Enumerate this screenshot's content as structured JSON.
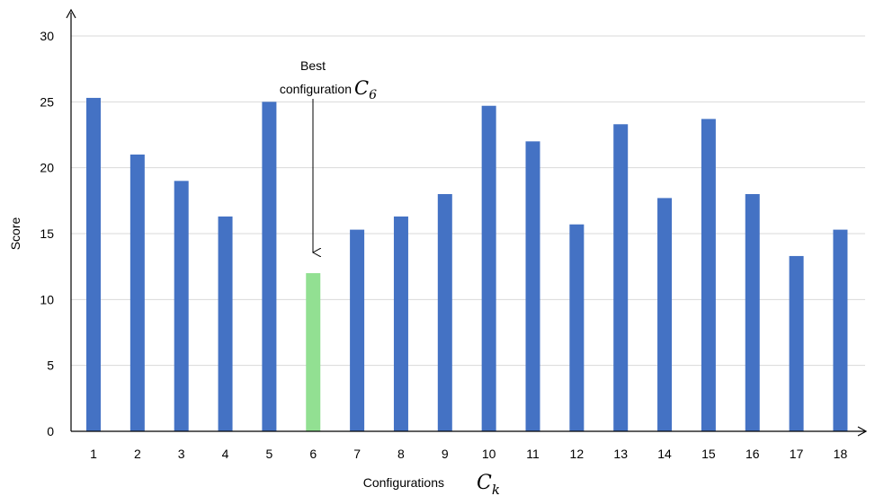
{
  "chart_data": {
    "type": "bar",
    "categories": [
      "1",
      "2",
      "3",
      "4",
      "5",
      "6",
      "7",
      "8",
      "9",
      "10",
      "11",
      "12",
      "13",
      "14",
      "15",
      "16",
      "17",
      "18"
    ],
    "values": [
      25.3,
      21,
      19,
      16.3,
      25,
      12,
      15.3,
      16.3,
      18,
      24.7,
      22,
      15.7,
      23.3,
      17.7,
      23.7,
      18,
      13.3,
      15.3
    ],
    "highlight_index": 5,
    "colors": {
      "bar": "#4472C4",
      "highlight": "#92E092",
      "grid": "#D9D9D9",
      "axis": "#000000"
    },
    "ylabel": "Score",
    "xlabel": {
      "text": "Configurations",
      "symbol": "C",
      "subscript": "k"
    },
    "ylim": [
      0,
      30
    ],
    "yticks": [
      0,
      5,
      10,
      15,
      20,
      25,
      30
    ],
    "grid": true,
    "legend": "none",
    "annotation": {
      "line1": "Best",
      "line2": "configuration",
      "symbol": "C",
      "subscript": "6",
      "target_index": 5
    }
  }
}
